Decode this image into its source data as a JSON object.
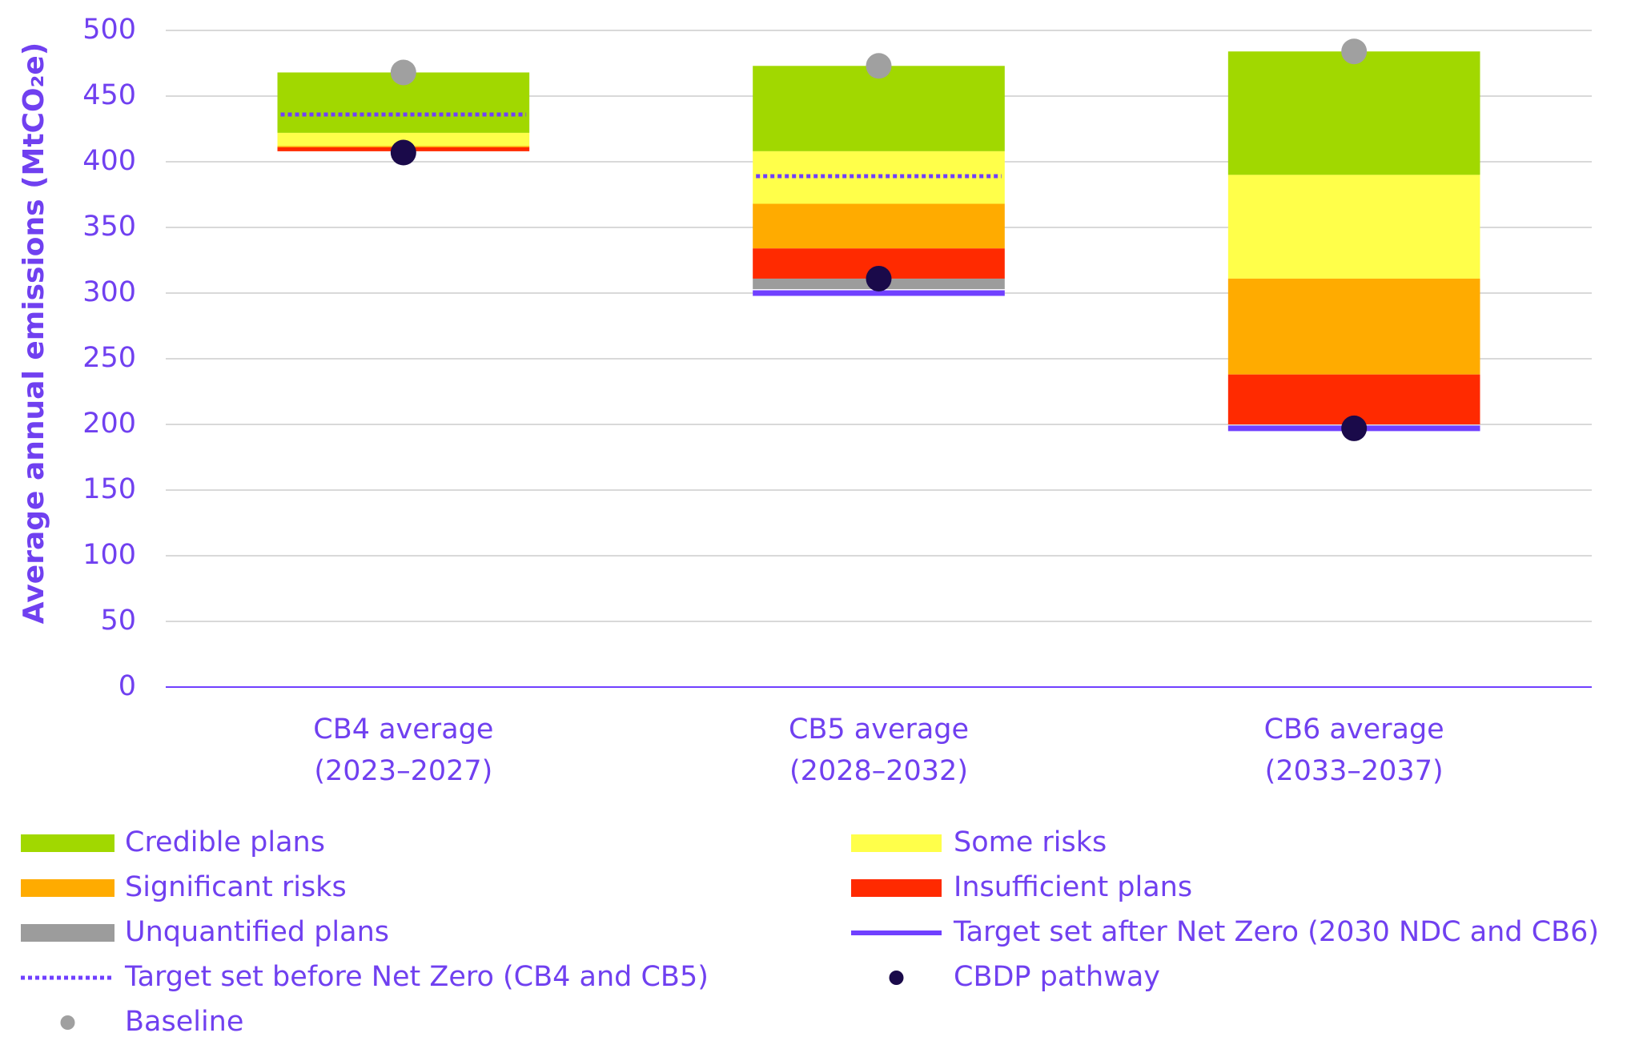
{
  "chart_data": {
    "type": "stacked-bar",
    "y_label": "Average annual emissions (MtCO₂e)",
    "categories": [
      [
        "CB4 average",
        "(2023–2027)"
      ],
      [
        "CB5 average",
        "(2028–2032)"
      ],
      [
        "CB6 average",
        "(2033–2037)"
      ]
    ],
    "ylim": [
      0,
      500
    ],
    "yticks": [
      0,
      50,
      100,
      150,
      200,
      250,
      300,
      350,
      400,
      450,
      500
    ],
    "grid": true,
    "stack_from": "Baseline",
    "series": [
      {
        "name": "Credible plans",
        "kind": "segment",
        "color": "#a1d800",
        "values": [
          46,
          65,
          94
        ]
      },
      {
        "name": "Some risks",
        "kind": "segment",
        "color": "#ffff4a",
        "values": [
          10,
          40,
          79
        ]
      },
      {
        "name": "Significant risks",
        "kind": "segment",
        "color": "#ffab00",
        "values": [
          1,
          34,
          73
        ]
      },
      {
        "name": "Insufficient plans",
        "kind": "segment",
        "color": "#ff2a00",
        "values": [
          3,
          23,
          38
        ]
      },
      {
        "name": "Unquantified plans",
        "kind": "segment",
        "color": "#9c9c9c",
        "values": [
          0,
          8,
          0
        ]
      },
      {
        "name": "Target set after Net Zero (2030 NDC and CB6)",
        "kind": "line",
        "color": "#7040ff",
        "values": [
          null,
          300,
          197
        ]
      },
      {
        "name": "Target set before Net Zero (CB4 and CB5)",
        "kind": "dotted",
        "color": "#7040ff",
        "values": [
          436,
          389,
          null
        ]
      },
      {
        "name": "CBDP pathway",
        "kind": "dot",
        "color": "#1a0a4a",
        "values": [
          407,
          311,
          197
        ]
      },
      {
        "name": "Baseline",
        "kind": "dot",
        "color": "#a0a0a0",
        "values": [
          468,
          473,
          484
        ]
      }
    ]
  }
}
